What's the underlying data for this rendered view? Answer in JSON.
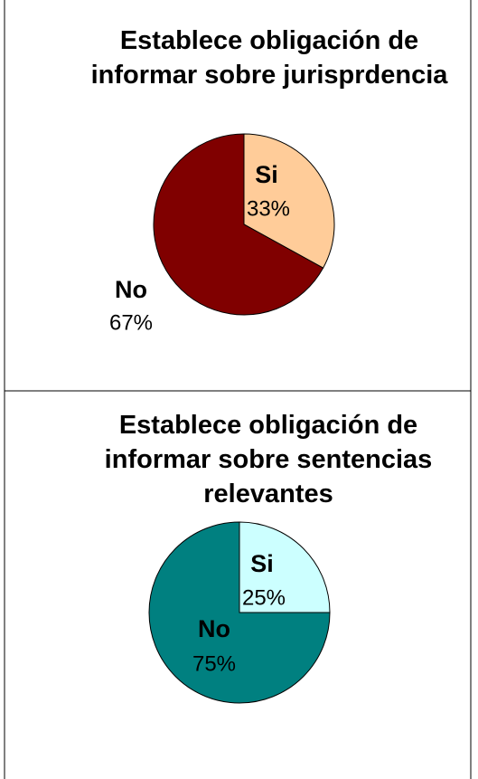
{
  "chart_data": [
    {
      "type": "pie",
      "title": "Establece obligación de informar sobre jurisprdencia",
      "categories": [
        "Si",
        "No"
      ],
      "values": [
        33,
        67
      ],
      "value_labels": [
        "33%",
        "67%"
      ],
      "colors": [
        "#ffcc99",
        "#800000"
      ]
    },
    {
      "type": "pie",
      "title": "Establece obligación de informar sobre sentencias relevantes",
      "categories": [
        "Si",
        "No"
      ],
      "values": [
        25,
        75
      ],
      "value_labels": [
        "25%",
        "75%"
      ],
      "colors": [
        "#ccffff",
        "#008080"
      ]
    }
  ]
}
